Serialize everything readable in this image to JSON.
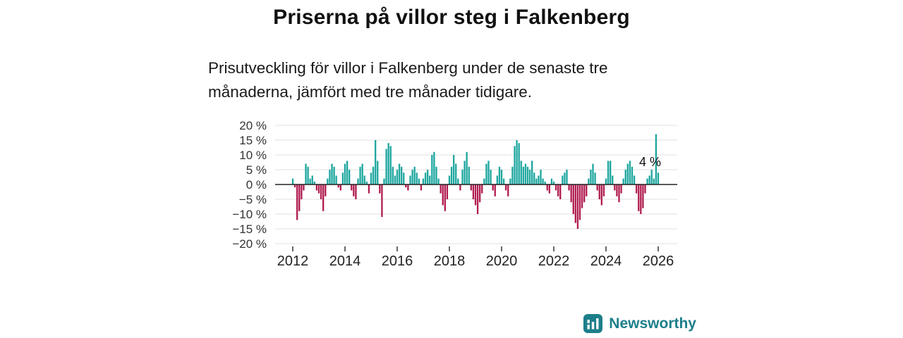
{
  "header": {
    "title": "Priserna på villor steg i Falkenberg",
    "subtitle": "Prisutveckling för villor i Falkenberg under de senaste tre månaderna, jämfört med tre månader tidigare."
  },
  "chart_data": {
    "type": "bar",
    "title": "Priserna på villor steg i Falkenberg",
    "x_start": "2012-01",
    "x_freq": "monthly",
    "values": [
      2,
      -1,
      -12,
      -9,
      -5,
      -2,
      7,
      6,
      2,
      3,
      1,
      -2,
      -3,
      -5,
      -9,
      -4,
      2,
      5,
      7,
      6,
      3,
      -1,
      -2,
      4,
      7,
      8,
      5,
      -2,
      -4,
      -5,
      2,
      6,
      7,
      3,
      1,
      -3,
      4,
      6,
      15,
      8,
      -3,
      -11,
      2,
      12,
      14,
      13,
      6,
      3,
      5,
      7,
      6,
      4,
      -1,
      -2,
      3,
      5,
      6,
      4,
      2,
      -2,
      2,
      4,
      5,
      3,
      10,
      11,
      6,
      2,
      -3,
      -7,
      -9,
      -5,
      3,
      6,
      10,
      7,
      2,
      -2,
      5,
      8,
      11,
      6,
      -2,
      -5,
      -7,
      -10,
      -6,
      -3,
      2,
      7,
      8,
      5,
      -2,
      -4,
      3,
      6,
      5,
      2,
      -2,
      -4,
      2,
      6,
      13,
      15,
      14,
      8,
      6,
      7,
      6,
      5,
      8,
      4,
      2,
      3,
      5,
      2,
      1,
      -2,
      -3,
      2,
      1,
      -2,
      -4,
      -5,
      3,
      4,
      5,
      -2,
      -6,
      -10,
      -13,
      -15,
      -12,
      -8,
      -6,
      -4,
      2,
      5,
      7,
      4,
      -2,
      -5,
      -7,
      -4,
      2,
      8,
      8,
      3,
      -2,
      -4,
      -6,
      -3,
      2,
      5,
      7,
      8,
      6,
      3,
      -3,
      -9,
      -10,
      -8,
      -3,
      2,
      3,
      5,
      2,
      17,
      4
    ],
    "ylim": [
      -20,
      20
    ],
    "yticks": [
      {
        "label": "20 %",
        "value": 20
      },
      {
        "label": "15 %",
        "value": 15
      },
      {
        "label": "10 %",
        "value": 10
      },
      {
        "label": "5 %",
        "value": 5
      },
      {
        "label": "0 %",
        "value": 0
      },
      {
        "label": "−5 %",
        "value": -5
      },
      {
        "label": "−10 %",
        "value": -10
      },
      {
        "label": "−15 %",
        "value": -15
      },
      {
        "label": "−20 %",
        "value": -20
      }
    ],
    "xticks": [
      {
        "label": "2012",
        "year": 2012
      },
      {
        "label": "2014",
        "year": 2014
      },
      {
        "label": "2016",
        "year": 2016
      },
      {
        "label": "2018",
        "year": 2018
      },
      {
        "label": "2020",
        "year": 2020
      },
      {
        "label": "2022",
        "year": 2022
      },
      {
        "label": "2024",
        "year": 2024
      },
      {
        "label": "2026",
        "year": 2026
      }
    ],
    "annotation": {
      "text": "4 %",
      "target": "last-value"
    },
    "legend": "none",
    "grid": "horizontal",
    "colors": {
      "positive": "#1ca69e",
      "negative": "#b01b4f",
      "zeroline": "#222222",
      "grid": "#e2e2e2",
      "axis_text": "#333333",
      "annotation_text": "#111111"
    }
  },
  "footer": {
    "brand": "Newsworthy",
    "brand_color": "#1d7f8a",
    "logo": "bar-chart-logo"
  }
}
